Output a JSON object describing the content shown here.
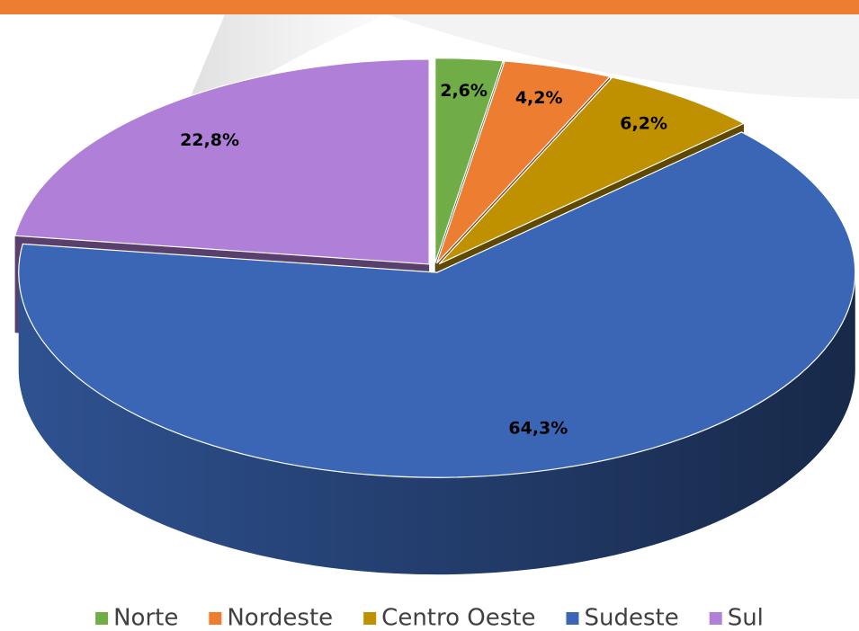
{
  "chart_data": {
    "type": "pie",
    "categories": [
      "Norte",
      "Nordeste",
      "Centro Oeste",
      "Sudeste",
      "Sul"
    ],
    "values": [
      2.6,
      4.2,
      6.2,
      64.3,
      22.8
    ],
    "value_labels": [
      "2,6%",
      "4,2%",
      "6,2%",
      "64,3%",
      "22,8%"
    ],
    "colors": [
      "#70ad47",
      "#ed7d31",
      "#bf9000",
      "#3a66b5",
      "#b07fd8"
    ],
    "legend": "bottom"
  }
}
